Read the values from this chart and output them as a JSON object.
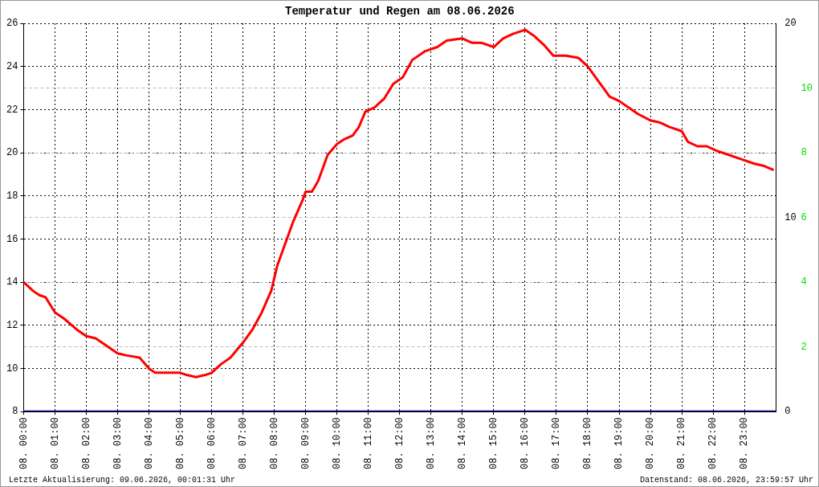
{
  "chart_data": {
    "type": "line",
    "title": "Temperatur und Regen am 08.06.2026",
    "annotations": [
      "Letzte Aktualisierung: 09.06.2026, 00:01:31 Uhr",
      "Datenstand: 08.06.2026, 23:59:57 Uhr"
    ],
    "xlim": [
      "2026-06-08T00:00",
      "2026-06-09T00:00"
    ],
    "xticks": [
      {
        "value": "2026-06-08T00:00",
        "label": "08. 00:00"
      },
      {
        "value": "2026-06-08T01:00",
        "label": "08. 01:00"
      },
      {
        "value": "2026-06-08T02:00",
        "label": "08. 02:00"
      },
      {
        "value": "2026-06-08T03:00",
        "label": "08. 03:00"
      },
      {
        "value": "2026-06-08T04:00",
        "label": "08. 04:00"
      },
      {
        "value": "2026-06-08T05:00",
        "label": "08. 05:00"
      },
      {
        "value": "2026-06-08T06:00",
        "label": "08. 06:00"
      },
      {
        "value": "2026-06-08T07:00",
        "label": "08. 07:00"
      },
      {
        "value": "2026-06-08T08:00",
        "label": "08. 08:00"
      },
      {
        "value": "2026-06-08T09:00",
        "label": "08. 09:00"
      },
      {
        "value": "2026-06-08T10:00",
        "label": "08. 10:00"
      },
      {
        "value": "2026-06-08T11:00",
        "label": "08. 11:00"
      },
      {
        "value": "2026-06-08T12:00",
        "label": "08. 12:00"
      },
      {
        "value": "2026-06-08T13:00",
        "label": "08. 13:00"
      },
      {
        "value": "2026-06-08T14:00",
        "label": "08. 14:00"
      },
      {
        "value": "2026-06-08T15:00",
        "label": "08. 15:00"
      },
      {
        "value": "2026-06-08T16:00",
        "label": "08. 16:00"
      },
      {
        "value": "2026-06-08T17:00",
        "label": "08. 17:00"
      },
      {
        "value": "2026-06-08T18:00",
        "label": "08. 18:00"
      },
      {
        "value": "2026-06-08T19:00",
        "label": "08. 19:00"
      },
      {
        "value": "2026-06-08T20:00",
        "label": "08. 20:00"
      },
      {
        "value": "2026-06-08T21:00",
        "label": "08. 21:00"
      },
      {
        "value": "2026-06-08T22:00",
        "label": "08. 22:00"
      },
      {
        "value": "2026-06-08T23:00",
        "label": "08. 23:00"
      }
    ],
    "ylim": [
      8,
      26
    ],
    "yticks": [
      8,
      10,
      12,
      14,
      16,
      18,
      20,
      22,
      24,
      26
    ],
    "y2lim": [
      0,
      20
    ],
    "y2ticks": [
      0,
      10,
      20
    ],
    "y3lim": [
      0,
      12
    ],
    "y3ticks": [
      2,
      4,
      6,
      8,
      10
    ],
    "grid": true,
    "legend": false,
    "marker": "none",
    "line_style": "solid",
    "series": [
      {
        "color": "#ff0000",
        "x": [
          "2026-06-08T00:00",
          "2026-06-08T00:18",
          "2026-06-08T00:30",
          "2026-06-08T00:42",
          "2026-06-08T01:00",
          "2026-06-08T01:18",
          "2026-06-08T01:42",
          "2026-06-08T02:00",
          "2026-06-08T02:18",
          "2026-06-08T02:36",
          "2026-06-08T03:00",
          "2026-06-08T03:18",
          "2026-06-08T03:42",
          "2026-06-08T04:00",
          "2026-06-08T04:12",
          "2026-06-08T04:30",
          "2026-06-08T05:00",
          "2026-06-08T05:12",
          "2026-06-08T05:30",
          "2026-06-08T05:48",
          "2026-06-08T06:00",
          "2026-06-08T06:18",
          "2026-06-08T06:36",
          "2026-06-08T07:00",
          "2026-06-08T07:18",
          "2026-06-08T07:36",
          "2026-06-08T07:54",
          "2026-06-08T08:06",
          "2026-06-08T08:18",
          "2026-06-08T08:36",
          "2026-06-08T08:54",
          "2026-06-08T09:00",
          "2026-06-08T09:12",
          "2026-06-08T09:24",
          "2026-06-08T09:42",
          "2026-06-08T10:00",
          "2026-06-08T10:12",
          "2026-06-08T10:30",
          "2026-06-08T10:42",
          "2026-06-08T10:54",
          "2026-06-08T11:12",
          "2026-06-08T11:30",
          "2026-06-08T11:48",
          "2026-06-08T12:06",
          "2026-06-08T12:24",
          "2026-06-08T12:48",
          "2026-06-08T13:12",
          "2026-06-08T13:30",
          "2026-06-08T14:00",
          "2026-06-08T14:18",
          "2026-06-08T14:36",
          "2026-06-08T15:00",
          "2026-06-08T15:18",
          "2026-06-08T15:36",
          "2026-06-08T16:00",
          "2026-06-08T16:18",
          "2026-06-08T16:36",
          "2026-06-08T16:54",
          "2026-06-08T17:18",
          "2026-06-08T17:42",
          "2026-06-08T18:00",
          "2026-06-08T18:18",
          "2026-06-08T18:42",
          "2026-06-08T19:00",
          "2026-06-08T19:18",
          "2026-06-08T19:36",
          "2026-06-08T20:00",
          "2026-06-08T20:18",
          "2026-06-08T20:36",
          "2026-06-08T21:00",
          "2026-06-08T21:12",
          "2026-06-08T21:30",
          "2026-06-08T21:48",
          "2026-06-08T22:06",
          "2026-06-08T22:30",
          "2026-06-08T22:54",
          "2026-06-08T23:18",
          "2026-06-08T23:36",
          "2026-06-08T23:56"
        ],
        "values": [
          14.0,
          13.6,
          13.4,
          13.3,
          12.6,
          12.3,
          11.8,
          11.5,
          11.4,
          11.1,
          10.7,
          10.6,
          10.5,
          10.0,
          9.8,
          9.8,
          9.8,
          9.7,
          9.6,
          9.7,
          9.8,
          10.2,
          10.5,
          11.2,
          11.8,
          12.6,
          13.6,
          14.8,
          15.6,
          16.8,
          17.8,
          18.2,
          18.2,
          18.7,
          19.9,
          20.4,
          20.6,
          20.8,
          21.2,
          21.9,
          22.1,
          22.5,
          23.2,
          23.5,
          24.3,
          24.7,
          24.9,
          25.2,
          25.3,
          25.1,
          25.1,
          24.9,
          25.3,
          25.5,
          25.7,
          25.4,
          25.0,
          24.5,
          24.5,
          24.4,
          24.0,
          23.4,
          22.6,
          22.4,
          22.1,
          21.8,
          21.5,
          21.4,
          21.2,
          21.0,
          20.5,
          20.3,
          20.3,
          20.1,
          19.9,
          19.7,
          19.5,
          19.4,
          19.2
        ]
      },
      {
        "color": "#000080",
        "axis": "y2",
        "x": [
          "2026-06-08T00:00",
          "2026-06-09T00:00"
        ],
        "values": [
          0,
          0
        ]
      }
    ]
  }
}
